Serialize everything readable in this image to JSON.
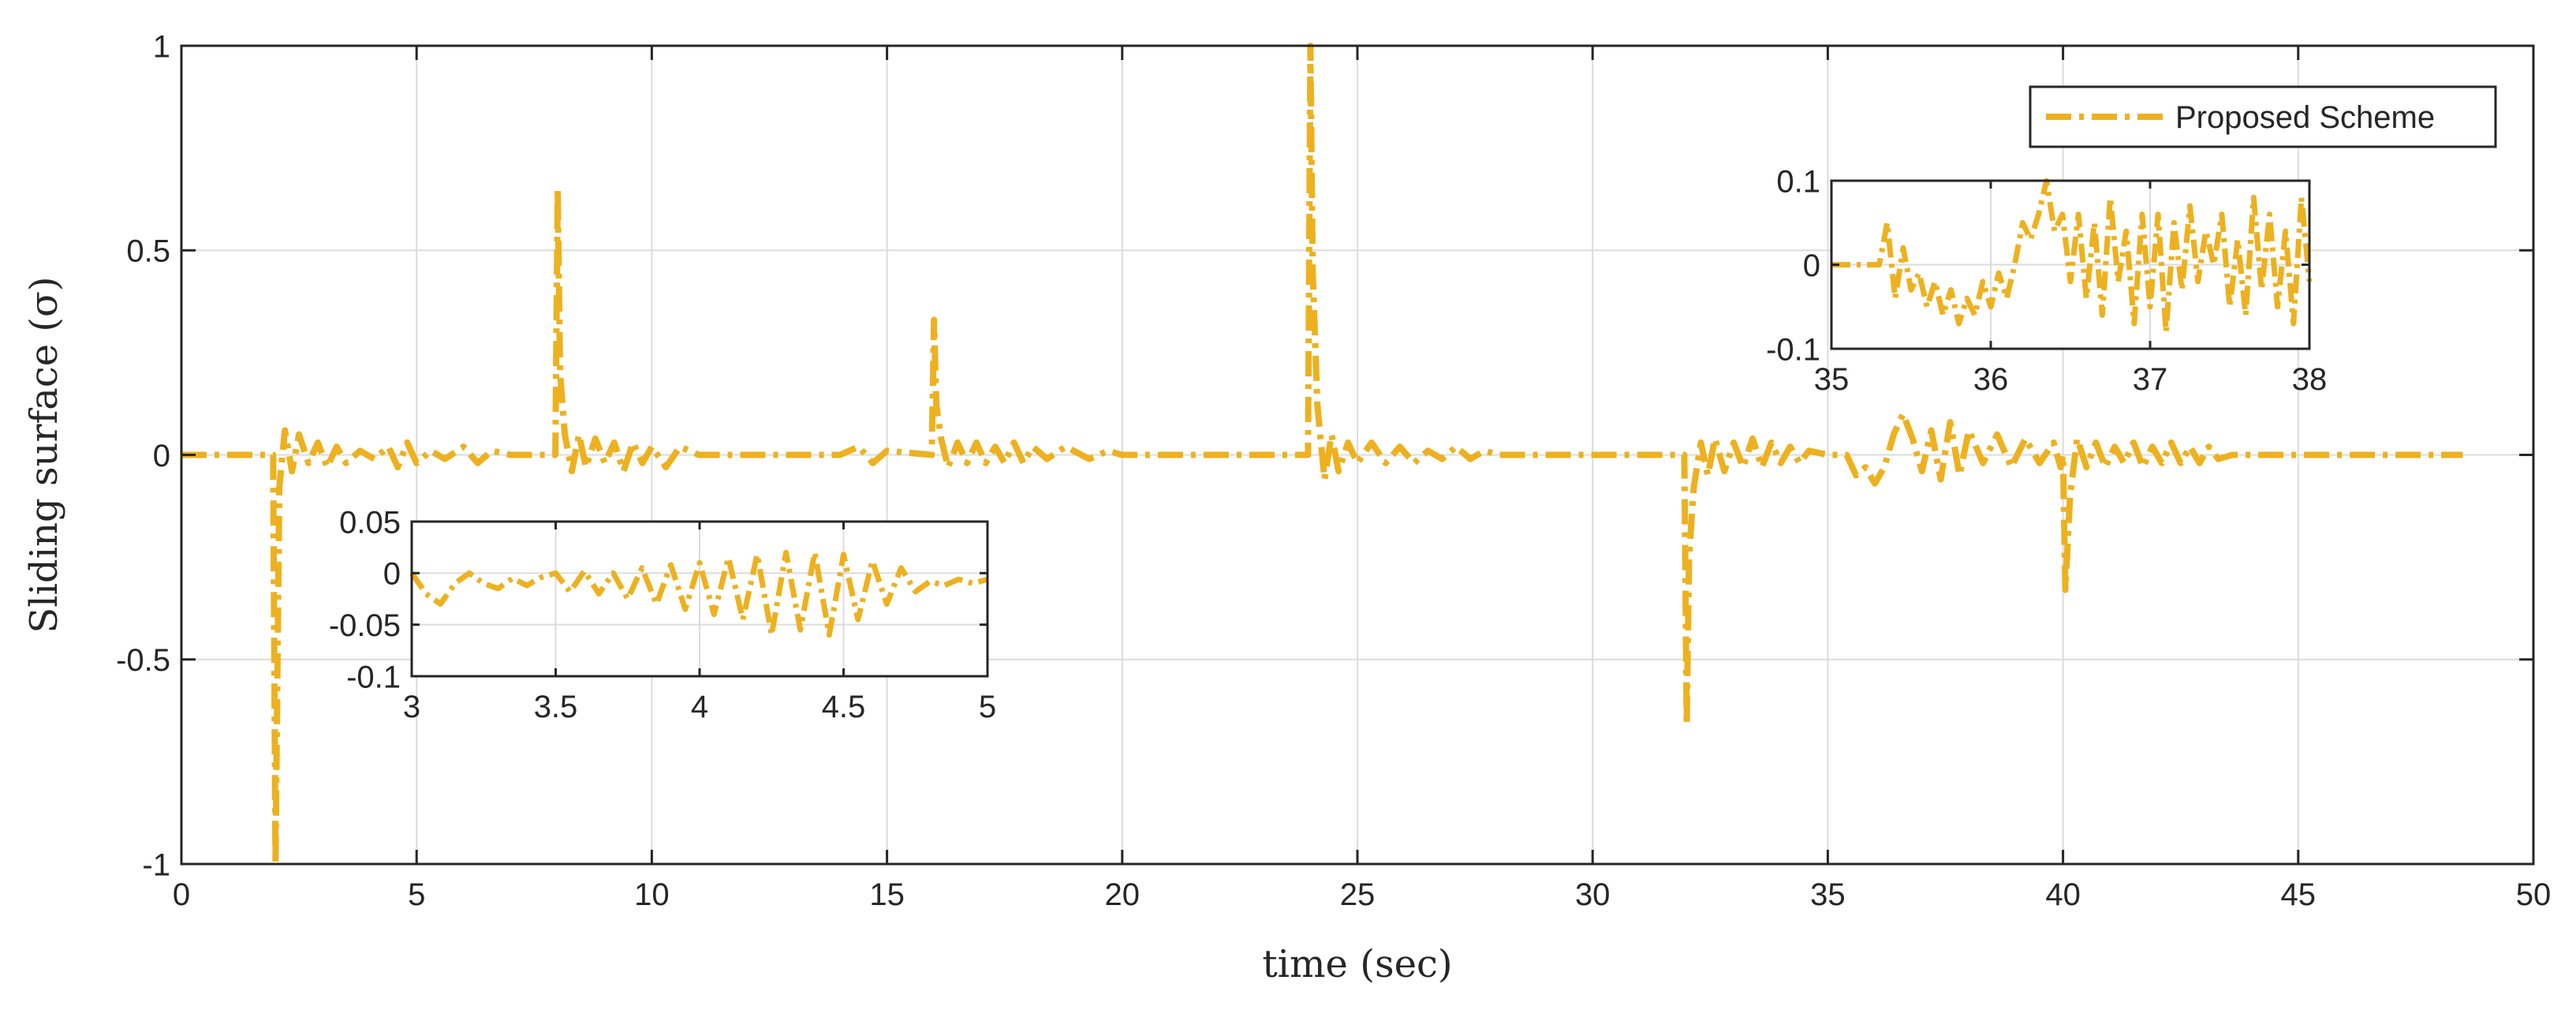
{
  "chart_data": [
    {
      "id": "main",
      "type": "line",
      "xlabel": "time (sec)",
      "ylabel": "Sliding surface (σ)",
      "xlim": [
        0,
        50
      ],
      "ylim": [
        -1,
        1
      ],
      "xticks": [
        0,
        5,
        10,
        15,
        20,
        25,
        30,
        35,
        40,
        45,
        50
      ],
      "yticks": [
        -1,
        -0.5,
        0,
        0.5,
        1
      ],
      "xtick_labels": [
        "0",
        "5",
        "10",
        "15",
        "20",
        "25",
        "30",
        "35",
        "40",
        "45",
        "50"
      ],
      "ytick_labels": [
        "-1",
        "-0.5",
        "0",
        "0.5",
        "1"
      ],
      "grid": true,
      "legend": {
        "placement": "top-right",
        "entries": [
          "Proposed Scheme"
        ]
      },
      "series": [
        {
          "name": "Proposed Scheme",
          "color": "#EDB120",
          "style": "dash-dot",
          "x": [
            0,
            1.9,
            1.95,
            2.0,
            2.08,
            2.2,
            2.35,
            2.5,
            2.7,
            2.9,
            3.1,
            3.3,
            3.5,
            3.8,
            4.1,
            4.4,
            4.6,
            4.8,
            5.0,
            5.3,
            5.6,
            6.0,
            6.3,
            6.6,
            7.0,
            7.5,
            7.95,
            8.0,
            8.05,
            8.15,
            8.3,
            8.45,
            8.6,
            8.8,
            9.0,
            9.2,
            9.4,
            9.6,
            9.8,
            10.0,
            10.3,
            10.6,
            11.0,
            12.0,
            13.0,
            14.0,
            14.4,
            14.7,
            15.0,
            15.95,
            16.0,
            16.05,
            16.15,
            16.3,
            16.5,
            16.7,
            16.9,
            17.1,
            17.3,
            17.5,
            17.7,
            17.9,
            18.1,
            18.4,
            18.8,
            19.3,
            19.7,
            20.0,
            21.0,
            22.0,
            23.0,
            23.95,
            24.0,
            24.05,
            24.15,
            24.3,
            24.45,
            24.6,
            24.8,
            25.0,
            25.3,
            25.6,
            25.9,
            26.2,
            26.5,
            26.8,
            27.1,
            27.4,
            27.7,
            28.0,
            29.0,
            30.0,
            31.0,
            31.95,
            32.0,
            32.05,
            32.15,
            32.3,
            32.45,
            32.6,
            32.8,
            33.0,
            33.2,
            33.4,
            33.6,
            33.8,
            34.0,
            34.2,
            34.4,
            34.6,
            35.0,
            35.4,
            35.6,
            35.8,
            36.0,
            36.2,
            36.4,
            36.6,
            36.8,
            37.0,
            37.2,
            37.4,
            37.6,
            37.8,
            38.0,
            38.3,
            38.6,
            38.9,
            39.2,
            39.5,
            39.8,
            39.95,
            40.0,
            40.05,
            40.15,
            40.3,
            40.5,
            40.7,
            40.9,
            41.1,
            41.3,
            41.5,
            41.7,
            41.9,
            42.1,
            42.3,
            42.5,
            42.7,
            42.9,
            43.1,
            43.3,
            43.6,
            44.0,
            45.0,
            46.0,
            47.0,
            48.5
          ],
          "y": [
            0,
            0,
            0,
            -1.0,
            -0.08,
            0.06,
            -0.04,
            0.05,
            -0.02,
            0.03,
            -0.03,
            0.02,
            -0.02,
            0.01,
            -0.01,
            0.02,
            -0.03,
            0.03,
            -0.02,
            0.01,
            -0.01,
            0.02,
            -0.02,
            0.01,
            0,
            0,
            0,
            0.65,
            0.2,
            0.05,
            -0.04,
            0.05,
            -0.03,
            0.04,
            -0.02,
            0.03,
            -0.04,
            0.03,
            -0.02,
            0.02,
            -0.03,
            0.02,
            0,
            0,
            0,
            0,
            0.02,
            -0.02,
            0.01,
            0,
            0.33,
            0.12,
            0.04,
            -0.03,
            0.03,
            -0.02,
            0.03,
            -0.02,
            0.02,
            -0.02,
            0.03,
            -0.02,
            0.02,
            -0.01,
            0.02,
            -0.01,
            0.01,
            0,
            0,
            0,
            0,
            0,
            1.0,
            0.45,
            0.12,
            -0.06,
            0.05,
            -0.04,
            0.03,
            -0.02,
            0.03,
            -0.02,
            0.02,
            -0.02,
            0.01,
            -0.01,
            0.02,
            -0.01,
            0.01,
            0,
            0,
            0,
            0,
            0,
            -0.66,
            -0.25,
            -0.08,
            0.03,
            -0.05,
            0.04,
            -0.04,
            0.03,
            -0.03,
            0.04,
            -0.03,
            0.03,
            -0.02,
            0.02,
            -0.02,
            0.01,
            0,
            0,
            -0.05,
            -0.03,
            -0.07,
            -0.03,
            0.05,
            0.1,
            0.04,
            -0.04,
            0.06,
            -0.06,
            0.08,
            -0.05,
            0.06,
            -0.02,
            0.05,
            -0.03,
            0.04,
            -0.02,
            0.03,
            -0.03,
            0,
            -0.33,
            -0.1,
            0.04,
            -0.03,
            0.03,
            -0.03,
            0.02,
            -0.02,
            0.03,
            -0.03,
            0.02,
            -0.02,
            0.03,
            -0.02,
            0.02,
            -0.02,
            0.02,
            -0.01,
            0,
            0,
            0,
            0,
            0,
            0
          ]
        }
      ]
    },
    {
      "id": "inset-left",
      "type": "line",
      "xlim": [
        3,
        5
      ],
      "ylim": [
        -0.1,
        0.05
      ],
      "xticks": [
        3,
        3.5,
        4,
        4.5,
        5
      ],
      "yticks": [
        -0.1,
        -0.05,
        0,
        0.05
      ],
      "xtick_labels": [
        "3",
        "3.5",
        "4",
        "4.5",
        "5"
      ],
      "ytick_labels": [
        "-0.1",
        "-0.05",
        "0",
        "0.05"
      ],
      "grid": true,
      "series": [
        {
          "name": "Proposed Scheme",
          "color": "#EDB120",
          "x": [
            3.0,
            3.05,
            3.1,
            3.15,
            3.2,
            3.25,
            3.3,
            3.35,
            3.4,
            3.45,
            3.5,
            3.55,
            3.6,
            3.65,
            3.7,
            3.75,
            3.8,
            3.85,
            3.9,
            3.95,
            4.0,
            4.05,
            4.1,
            4.15,
            4.2,
            4.25,
            4.3,
            4.35,
            4.4,
            4.45,
            4.5,
            4.55,
            4.6,
            4.65,
            4.7,
            4.75,
            4.8,
            4.85,
            4.9,
            4.95,
            5.0
          ],
          "y": [
            0.0,
            -0.02,
            -0.03,
            -0.01,
            0.0,
            -0.01,
            -0.015,
            -0.005,
            -0.012,
            -0.004,
            0.0,
            -0.018,
            0.002,
            -0.02,
            0.0,
            -0.025,
            0.005,
            -0.03,
            0.008,
            -0.035,
            0.01,
            -0.04,
            0.015,
            -0.045,
            0.018,
            -0.06,
            0.02,
            -0.055,
            0.02,
            -0.06,
            0.018,
            -0.045,
            0.012,
            -0.03,
            0.005,
            -0.018,
            -0.008,
            -0.012,
            -0.006,
            -0.01,
            -0.006
          ]
        }
      ]
    },
    {
      "id": "inset-right",
      "type": "line",
      "xlim": [
        35,
        38
      ],
      "ylim": [
        -0.1,
        0.1
      ],
      "xticks": [
        35,
        36,
        37,
        38
      ],
      "yticks": [
        -0.1,
        0,
        0.1
      ],
      "xtick_labels": [
        "35",
        "36",
        "37",
        "38"
      ],
      "ytick_labels": [
        "-0.1",
        "0",
        "0.1"
      ],
      "grid": true,
      "series": [
        {
          "name": "Proposed Scheme",
          "color": "#EDB120",
          "x": [
            35.0,
            35.3,
            35.35,
            35.4,
            35.45,
            35.5,
            35.55,
            35.6,
            35.65,
            35.7,
            35.75,
            35.8,
            35.85,
            35.9,
            35.95,
            36.0,
            36.05,
            36.1,
            36.15,
            36.2,
            36.25,
            36.3,
            36.35,
            36.4,
            36.45,
            36.5,
            36.55,
            36.6,
            36.65,
            36.7,
            36.75,
            36.8,
            36.85,
            36.9,
            36.95,
            37.0,
            37.05,
            37.1,
            37.15,
            37.2,
            37.25,
            37.3,
            37.35,
            37.4,
            37.45,
            37.5,
            37.55,
            37.6,
            37.65,
            37.7,
            37.75,
            37.8,
            37.85,
            37.9,
            37.95,
            38.0
          ],
          "y": [
            0.0,
            0.0,
            0.05,
            -0.04,
            0.02,
            -0.03,
            -0.01,
            -0.05,
            -0.02,
            -0.06,
            -0.03,
            -0.07,
            -0.04,
            -0.06,
            -0.02,
            -0.05,
            -0.01,
            -0.04,
            0.0,
            0.05,
            0.03,
            0.06,
            0.1,
            0.04,
            0.06,
            -0.02,
            0.06,
            -0.04,
            0.05,
            -0.06,
            0.08,
            -0.02,
            0.04,
            -0.07,
            0.06,
            -0.05,
            0.06,
            -0.08,
            0.05,
            -0.03,
            0.07,
            -0.02,
            0.04,
            0.0,
            0.06,
            -0.05,
            0.03,
            -0.06,
            0.08,
            -0.03,
            0.06,
            -0.05,
            0.04,
            -0.07,
            0.08,
            -0.02
          ]
        }
      ]
    }
  ]
}
